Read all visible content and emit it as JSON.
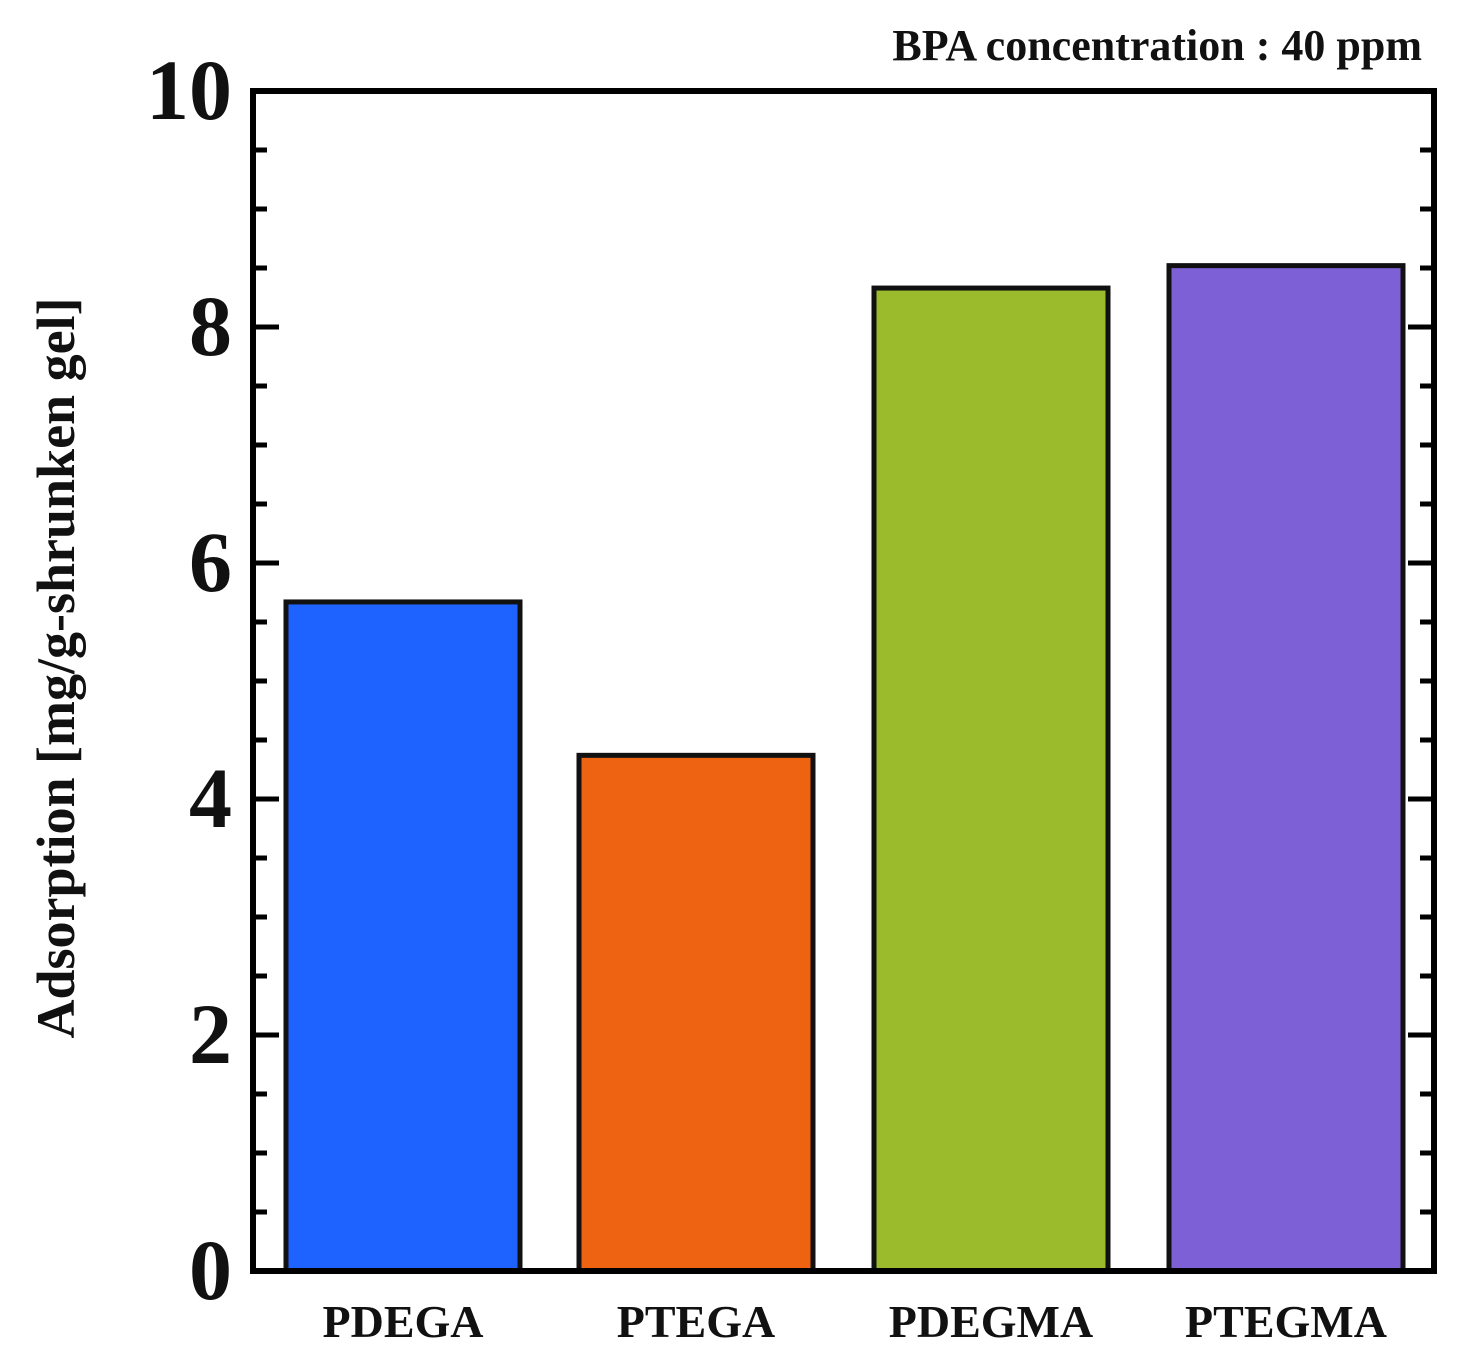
{
  "chart_data": {
    "type": "bar",
    "annotation": "BPA concentration : 40 ppm",
    "ylabel": "Adsorption  [mg/g-shrunken  gel]",
    "xlabel": "",
    "ylim": [
      0,
      10
    ],
    "yticks": [
      0,
      2,
      4,
      6,
      8,
      10
    ],
    "grid": false,
    "categories": [
      "PDEGA",
      "PTEGA",
      "PDEGMA",
      "PTEGMA"
    ],
    "values": [
      5.67,
      4.37,
      8.33,
      8.52
    ],
    "colors": [
      "#1e63ff",
      "#ee6312",
      "#9cbb2c",
      "#7e60d6"
    ]
  }
}
